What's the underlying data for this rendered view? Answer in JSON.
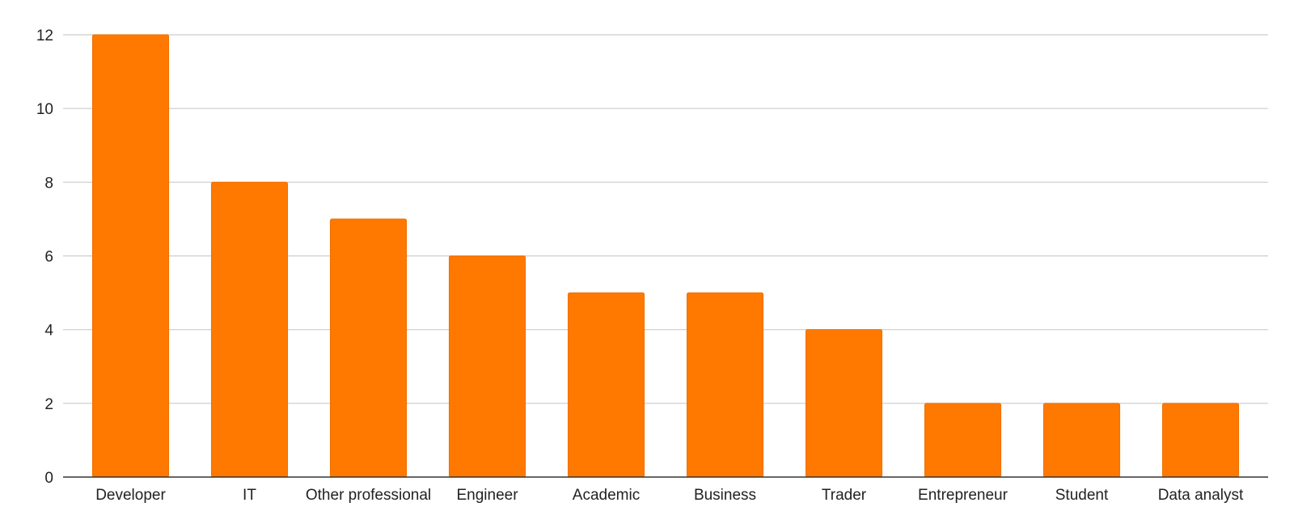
{
  "chart_data": {
    "type": "bar",
    "title": "",
    "xlabel": "",
    "ylabel": "",
    "categories": [
      "Developer",
      "IT",
      "Other professional",
      "Engineer",
      "Academic",
      "Business",
      "Trader",
      "Entrepreneur",
      "Student",
      "Data analyst"
    ],
    "values": [
      12,
      8,
      7,
      6,
      5,
      5,
      4,
      2,
      2,
      2
    ],
    "ylim": [
      0,
      12
    ],
    "yticks": [
      0,
      2,
      4,
      6,
      8,
      10,
      12
    ],
    "grid": true,
    "legend": "none",
    "bar_color": "#ff7800"
  }
}
